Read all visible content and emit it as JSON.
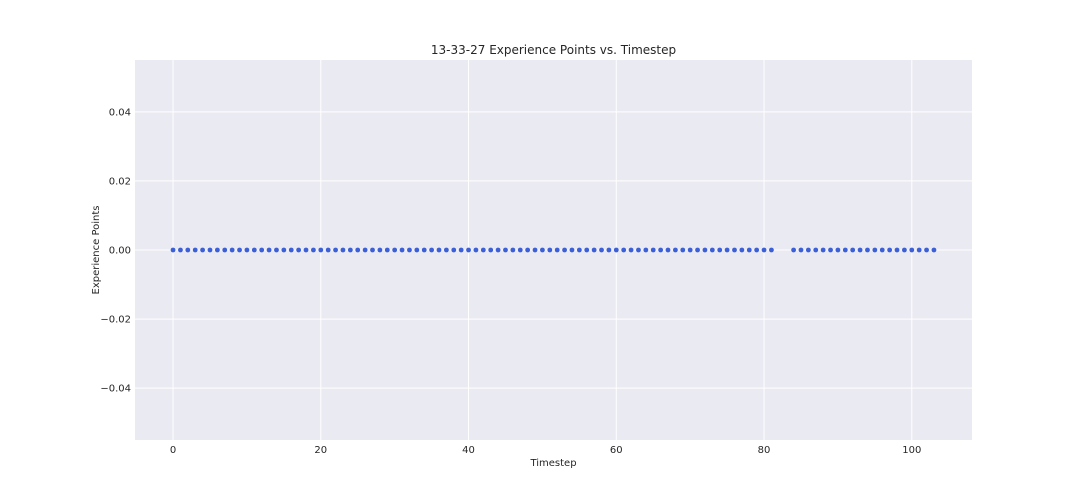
{
  "chart_data": {
    "type": "scatter",
    "title": "13-33-27 Experience Points vs. Timestep",
    "xlabel": "Timestep",
    "ylabel": "Experience Points",
    "xlim": [
      -5.15,
      108.15
    ],
    "ylim": [
      -0.055,
      0.055
    ],
    "xticks": [
      0,
      20,
      40,
      60,
      80,
      100
    ],
    "yticks": [
      -0.04,
      -0.02,
      0.0,
      0.02,
      0.04
    ],
    "xtick_labels": [
      "0",
      "20",
      "40",
      "60",
      "80",
      "100"
    ],
    "ytick_labels": [
      "−0.04",
      "−0.02",
      "0.00",
      "0.02",
      "0.04"
    ],
    "grid": true,
    "style": "seaborn-darkgrid",
    "marker_color": "#3b5fd6",
    "background_color": "#eaeaf2",
    "series": [
      {
        "x": [
          0,
          1,
          2,
          3,
          4,
          5,
          6,
          7,
          8,
          9,
          10,
          11,
          12,
          13,
          14,
          15,
          16,
          17,
          18,
          19,
          20,
          21,
          22,
          23,
          24,
          25,
          26,
          27,
          28,
          29,
          30,
          31,
          32,
          33,
          34,
          35,
          36,
          37,
          38,
          39,
          40,
          41,
          42,
          43,
          44,
          45,
          46,
          47,
          48,
          49,
          50,
          51,
          52,
          53,
          54,
          55,
          56,
          57,
          58,
          59,
          60,
          61,
          62,
          63,
          64,
          65,
          66,
          67,
          68,
          69,
          70,
          71,
          72,
          73,
          74,
          75,
          76,
          77,
          78,
          79,
          80,
          81,
          84,
          85,
          86,
          87,
          88,
          89,
          90,
          91,
          92,
          93,
          94,
          95,
          96,
          97,
          98,
          99,
          100,
          101,
          102,
          103
        ],
        "y": [
          0,
          0,
          0,
          0,
          0,
          0,
          0,
          0,
          0,
          0,
          0,
          0,
          0,
          0,
          0,
          0,
          0,
          0,
          0,
          0,
          0,
          0,
          0,
          0,
          0,
          0,
          0,
          0,
          0,
          0,
          0,
          0,
          0,
          0,
          0,
          0,
          0,
          0,
          0,
          0,
          0,
          0,
          0,
          0,
          0,
          0,
          0,
          0,
          0,
          0,
          0,
          0,
          0,
          0,
          0,
          0,
          0,
          0,
          0,
          0,
          0,
          0,
          0,
          0,
          0,
          0,
          0,
          0,
          0,
          0,
          0,
          0,
          0,
          0,
          0,
          0,
          0,
          0,
          0,
          0,
          0,
          0,
          0,
          0,
          0,
          0,
          0,
          0,
          0,
          0,
          0,
          0,
          0,
          0,
          0,
          0,
          0,
          0,
          0,
          0,
          0,
          0
        ]
      }
    ]
  }
}
